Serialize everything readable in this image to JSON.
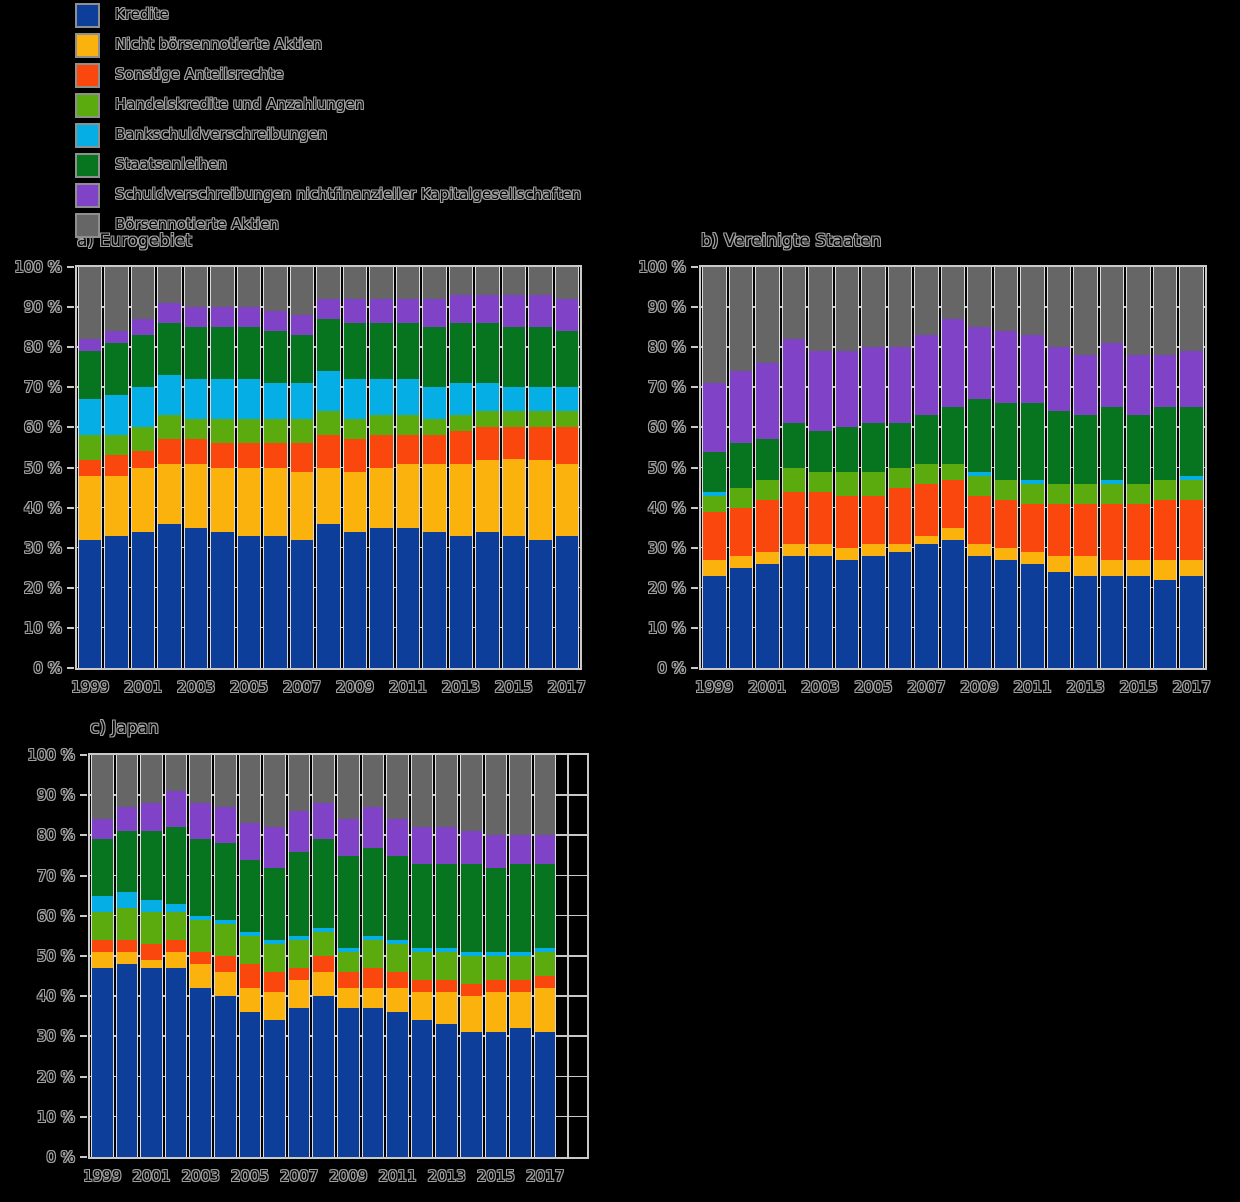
{
  "page": {
    "background_color": "#000000",
    "text_outline_color": "#a0a0a0",
    "grid_color": "#c9c9c9",
    "bar_edge_color": "#dcdcdc"
  },
  "legend": {
    "items": [
      {
        "label": "Kredite",
        "color": "#0d3e9a"
      },
      {
        "label": "Nicht börsennotierte Aktien",
        "color": "#fcb20c"
      },
      {
        "label": "Sonstige Anteilsrechte",
        "color": "#f9470e"
      },
      {
        "label": "Handelskredite und Anzahlungen",
        "color": "#5cab0e"
      },
      {
        "label": "Bankschuldverschreibungen",
        "color": "#06aee6"
      },
      {
        "label": "Staatsanleihen",
        "color": "#07741f"
      },
      {
        "label": "Schuldverschreibungen nichtfinanzieller Kapitalgesellschaften",
        "color": "#8042c6"
      },
      {
        "label": "Börsennotierte Aktien",
        "color": "#666666"
      }
    ]
  },
  "axes": {
    "y_tick_labels": [
      "100 %",
      "90 %",
      "80 %",
      "70 %",
      "60 %",
      "50 %",
      "40 %",
      "30 %",
      "20 %",
      "10 %",
      "0 %"
    ],
    "x_tick_labels": [
      "1999",
      "2001",
      "2003",
      "2005",
      "2007",
      "2009",
      "2011",
      "2013",
      "2015",
      "2017"
    ]
  },
  "chart_data": [
    {
      "id": "eurogebiet",
      "type": "bar",
      "stacked": true,
      "title": "a) Eurogebiet",
      "unit": "%",
      "ylim": [
        0,
        100
      ],
      "grid": "horizontal every 10%",
      "legend_position": "top-left of figure, shared",
      "categories": [
        "1999",
        "2000",
        "2001",
        "2002",
        "2003",
        "2004",
        "2005",
        "2006",
        "2007",
        "2008",
        "2009",
        "2010",
        "2011",
        "2012",
        "2013",
        "2014",
        "2015",
        "2016",
        "2017"
      ],
      "x_tick_labels": [
        "1999",
        "2001",
        "2003",
        "2005",
        "2007",
        "2009",
        "2011",
        "2013",
        "2015",
        "2017"
      ],
      "series": [
        {
          "name": "Kredite",
          "color": "#0d3e9a",
          "values": [
            32,
            33,
            34,
            36,
            35,
            34,
            33,
            33,
            32,
            36,
            34,
            35,
            35,
            34,
            33,
            34,
            33,
            32,
            33
          ]
        },
        {
          "name": "Nicht börsennotierte Aktien",
          "color": "#fcb20c",
          "values": [
            16,
            15,
            16,
            15,
            16,
            16,
            17,
            17,
            17,
            14,
            15,
            15,
            16,
            17,
            18,
            18,
            19,
            20,
            18
          ]
        },
        {
          "name": "Sonstige Anteilsrechte",
          "color": "#f9470e",
          "values": [
            4,
            5,
            4,
            6,
            6,
            6,
            6,
            6,
            7,
            8,
            8,
            8,
            7,
            7,
            8,
            8,
            8,
            8,
            9
          ]
        },
        {
          "name": "Handelskredite und Anzahlungen",
          "color": "#5cab0e",
          "values": [
            6,
            5,
            6,
            6,
            5,
            6,
            6,
            6,
            6,
            6,
            5,
            5,
            5,
            4,
            4,
            4,
            4,
            4,
            4
          ]
        },
        {
          "name": "Bankschuldverschreibungen",
          "color": "#06aee6",
          "values": [
            9,
            10,
            10,
            10,
            10,
            10,
            10,
            9,
            9,
            10,
            10,
            9,
            9,
            8,
            8,
            7,
            6,
            6,
            6
          ]
        },
        {
          "name": "Staatsanleihen",
          "color": "#07741f",
          "values": [
            12,
            13,
            13,
            13,
            13,
            13,
            13,
            13,
            12,
            13,
            14,
            14,
            14,
            15,
            15,
            15,
            15,
            15,
            14
          ]
        },
        {
          "name": "Schuldverschreibungen nichtfinanzieller Kapitalgesellschaften",
          "color": "#8042c6",
          "values": [
            3,
            3,
            4,
            5,
            5,
            5,
            5,
            5,
            5,
            5,
            6,
            6,
            6,
            7,
            7,
            7,
            8,
            8,
            8
          ]
        },
        {
          "name": "Börsennotierte Aktien",
          "color": "#666666",
          "values": [
            18,
            16,
            13,
            9,
            10,
            10,
            10,
            11,
            12,
            8,
            8,
            8,
            8,
            8,
            7,
            7,
            7,
            7,
            8
          ]
        }
      ]
    },
    {
      "id": "vereinigte-staaten",
      "type": "bar",
      "stacked": true,
      "title": "b) Vereinigte Staaten",
      "unit": "%",
      "ylim": [
        0,
        100
      ],
      "grid": "horizontal every 10%",
      "categories": [
        "1999",
        "2000",
        "2001",
        "2002",
        "2003",
        "2004",
        "2005",
        "2006",
        "2007",
        "2008",
        "2009",
        "2010",
        "2011",
        "2012",
        "2013",
        "2014",
        "2015",
        "2016",
        "2017"
      ],
      "x_tick_labels": [
        "1999",
        "2001",
        "2003",
        "2005",
        "2007",
        "2009",
        "2011",
        "2013",
        "2015",
        "2017"
      ],
      "series": [
        {
          "name": "Kredite",
          "color": "#0d3e9a",
          "values": [
            23,
            25,
            26,
            28,
            28,
            27,
            28,
            29,
            31,
            32,
            28,
            27,
            26,
            24,
            23,
            23,
            23,
            22,
            23
          ]
        },
        {
          "name": "Nicht börsennotierte Aktien",
          "color": "#fcb20c",
          "values": [
            4,
            3,
            3,
            3,
            3,
            3,
            3,
            2,
            2,
            3,
            3,
            3,
            3,
            4,
            5,
            4,
            4,
            5,
            4
          ]
        },
        {
          "name": "Sonstige Anteilsrechte",
          "color": "#f9470e",
          "values": [
            12,
            12,
            13,
            13,
            13,
            13,
            12,
            14,
            13,
            12,
            12,
            12,
            12,
            13,
            13,
            14,
            14,
            15,
            15
          ]
        },
        {
          "name": "Handelskredite und Anzahlungen",
          "color": "#5cab0e",
          "values": [
            4,
            5,
            5,
            6,
            5,
            6,
            6,
            5,
            5,
            4,
            5,
            5,
            5,
            5,
            5,
            5,
            5,
            5,
            5
          ]
        },
        {
          "name": "Bankschuldverschreibungen",
          "color": "#06aee6",
          "values": [
            1,
            0,
            0,
            0,
            0,
            0,
            0,
            0,
            0,
            0,
            1,
            0,
            1,
            0,
            0,
            1,
            0,
            0,
            1
          ]
        },
        {
          "name": "Staatsanleihen",
          "color": "#07741f",
          "values": [
            10,
            11,
            10,
            11,
            10,
            11,
            12,
            11,
            12,
            14,
            18,
            19,
            19,
            18,
            17,
            18,
            17,
            18,
            17
          ]
        },
        {
          "name": "Schuldverschreibungen nichtfinanzieller Kapitalgesellschaften",
          "color": "#8042c6",
          "values": [
            17,
            18,
            19,
            21,
            20,
            19,
            19,
            19,
            20,
            22,
            18,
            18,
            17,
            16,
            15,
            16,
            15,
            13,
            14
          ]
        },
        {
          "name": "Börsennotierte Aktien",
          "color": "#666666",
          "values": [
            29,
            26,
            24,
            18,
            21,
            21,
            20,
            20,
            17,
            13,
            15,
            16,
            17,
            20,
            22,
            19,
            22,
            22,
            21
          ]
        }
      ]
    },
    {
      "id": "japan",
      "type": "bar",
      "stacked": true,
      "title": "c) Japan",
      "unit": "%",
      "ylim": [
        0,
        100
      ],
      "grid": "horizontal every 10%",
      "categories": [
        "1999",
        "2000",
        "2001",
        "2002",
        "2003",
        "2004",
        "2005",
        "2006",
        "2007",
        "2008",
        "2009",
        "2010",
        "2011",
        "2012",
        "2013",
        "2014",
        "2015",
        "2016",
        "2017"
      ],
      "x_tick_labels": [
        "1999",
        "2001",
        "2003",
        "2005",
        "2007",
        "2009",
        "2011",
        "2013",
        "2015",
        "2017"
      ],
      "series": [
        {
          "name": "Kredite",
          "color": "#0d3e9a",
          "values": [
            47,
            48,
            47,
            47,
            42,
            40,
            36,
            34,
            37,
            40,
            37,
            37,
            36,
            34,
            33,
            31,
            31,
            32,
            31
          ]
        },
        {
          "name": "Nicht börsennotierte Aktien",
          "color": "#fcb20c",
          "values": [
            4,
            3,
            2,
            4,
            6,
            6,
            6,
            7,
            7,
            6,
            5,
            5,
            6,
            7,
            8,
            9,
            10,
            9,
            11
          ]
        },
        {
          "name": "Sonstige Anteilsrechte",
          "color": "#f9470e",
          "values": [
            3,
            3,
            4,
            3,
            3,
            4,
            6,
            5,
            3,
            4,
            4,
            5,
            4,
            3,
            3,
            3,
            3,
            3,
            3
          ]
        },
        {
          "name": "Handelskredite und Anzahlungen",
          "color": "#5cab0e",
          "values": [
            7,
            8,
            8,
            7,
            8,
            8,
            7,
            7,
            7,
            6,
            5,
            7,
            7,
            7,
            7,
            7,
            6,
            6,
            6
          ]
        },
        {
          "name": "Bankschuldverschreibungen",
          "color": "#06aee6",
          "values": [
            4,
            4,
            3,
            2,
            1,
            1,
            1,
            1,
            1,
            1,
            1,
            1,
            1,
            1,
            1,
            1,
            1,
            1,
            1
          ]
        },
        {
          "name": "Staatsanleihen",
          "color": "#07741f",
          "values": [
            14,
            15,
            17,
            19,
            19,
            19,
            18,
            18,
            21,
            22,
            23,
            22,
            21,
            21,
            21,
            22,
            21,
            22,
            21
          ]
        },
        {
          "name": "Schuldverschreibungen nichtfinanzieller Kapitalgesellschaften",
          "color": "#8042c6",
          "values": [
            5,
            6,
            7,
            9,
            9,
            9,
            9,
            10,
            10,
            9,
            9,
            10,
            9,
            9,
            9,
            8,
            8,
            7,
            7
          ]
        },
        {
          "name": "Börsennotierte Aktien",
          "color": "#666666",
          "values": [
            16,
            13,
            12,
            9,
            12,
            13,
            17,
            18,
            14,
            12,
            16,
            13,
            16,
            18,
            18,
            19,
            20,
            20,
            20
          ]
        }
      ]
    }
  ]
}
